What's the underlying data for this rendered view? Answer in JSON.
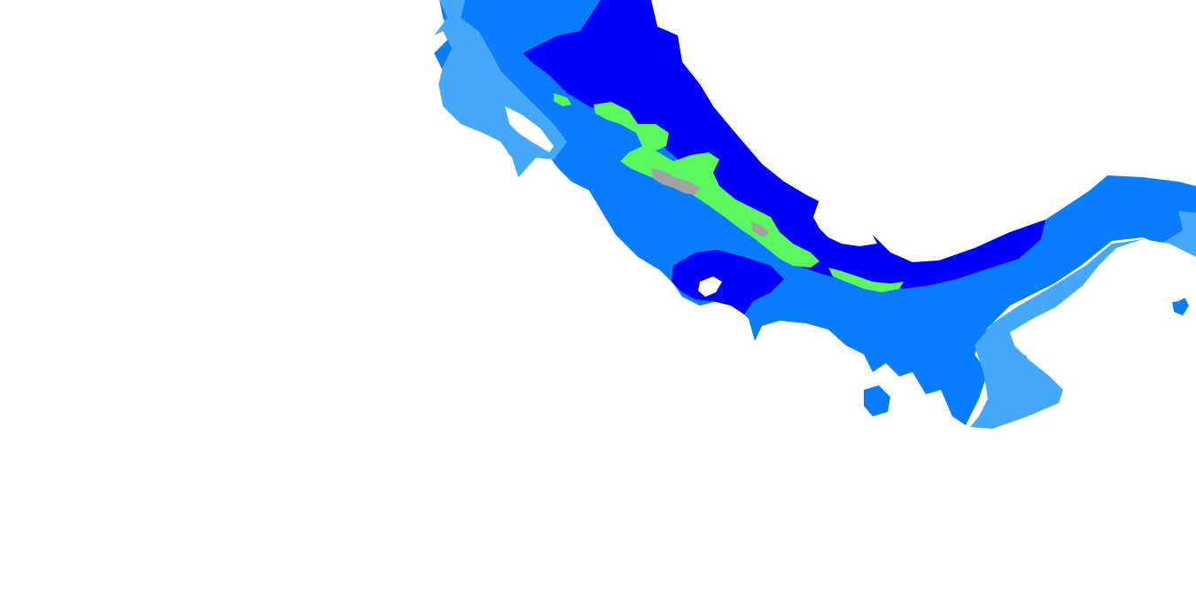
{
  "map": {
    "colors": {
      "background": "#ffffff",
      "zone_wet_lowland": "#0000ff",
      "zone_moist": "#0a7dff",
      "zone_dry": "#45a8fb",
      "zone_montane": "#5cf75c",
      "zone_alpine": "#a3a3a3"
    },
    "zone_order": [
      "zone_dry",
      "zone_moist",
      "zone_wet_lowland",
      "zone_montane",
      "zone_alpine"
    ]
  }
}
